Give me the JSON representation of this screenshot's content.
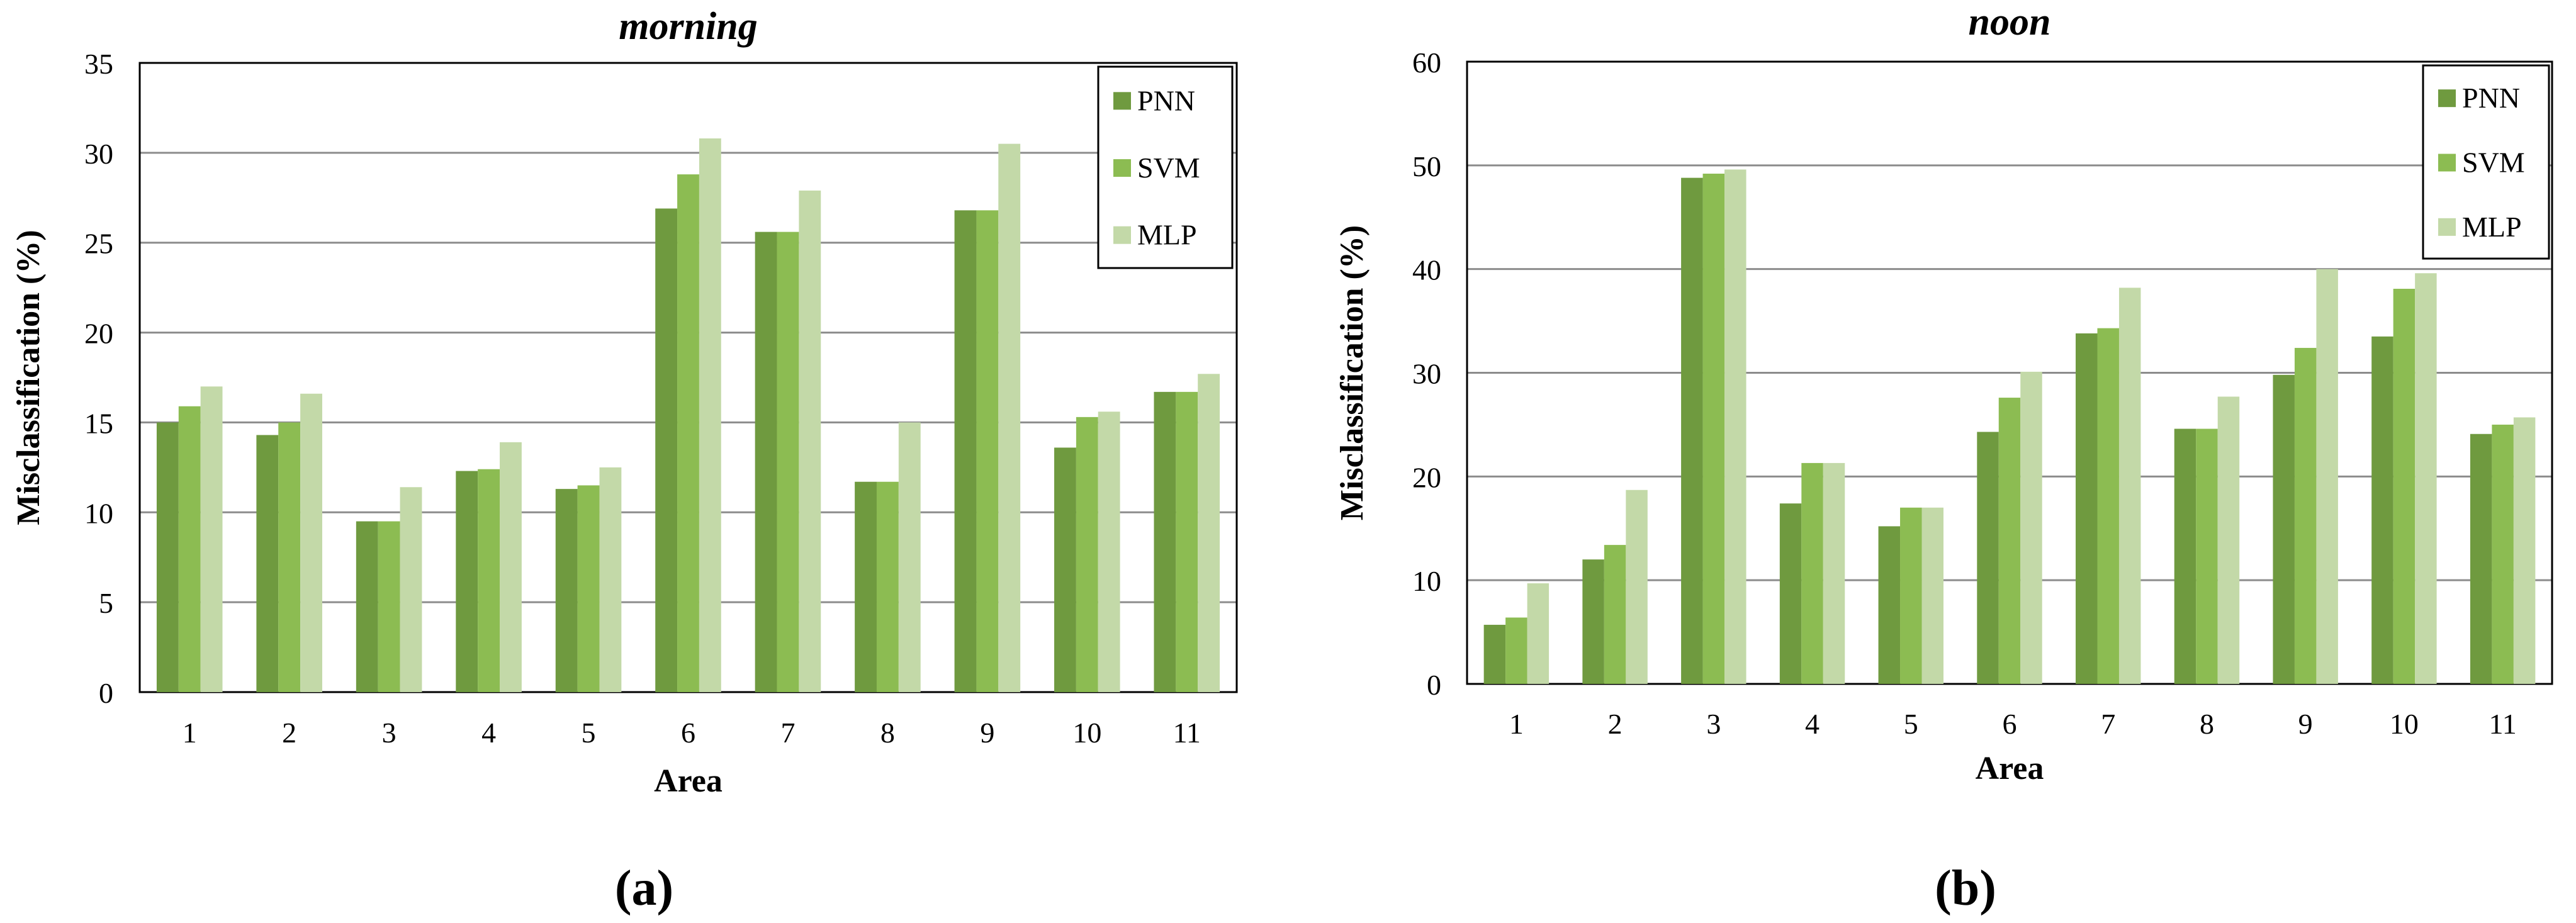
{
  "colors": {
    "PNN": "#6f9a3f",
    "SVM": "#8cbc52",
    "MLP": "#c3d9a8",
    "grid": "#8c8c8c",
    "axis": "#000000"
  },
  "chart_data": [
    {
      "type": "bar",
      "panel_label": "(a)",
      "title": "morning",
      "xlabel": "Area",
      "ylabel": "Misclassification (%)",
      "ylim": [
        0,
        35
      ],
      "yticks": [
        0,
        5,
        10,
        15,
        20,
        25,
        30,
        35
      ],
      "grid": true,
      "legend_position": "top-right",
      "categories": [
        "1",
        "2",
        "3",
        "4",
        "5",
        "6",
        "7",
        "8",
        "9",
        "10",
        "11"
      ],
      "series": [
        {
          "name": "PNN",
          "values": [
            15.0,
            14.3,
            9.5,
            12.3,
            11.3,
            26.9,
            25.6,
            11.7,
            26.8,
            13.6,
            16.7
          ]
        },
        {
          "name": "SVM",
          "values": [
            15.9,
            15.0,
            9.5,
            12.4,
            11.5,
            28.8,
            25.6,
            11.7,
            26.8,
            15.3,
            16.7
          ]
        },
        {
          "name": "MLP",
          "values": [
            17.0,
            16.6,
            11.4,
            13.9,
            12.5,
            30.8,
            27.9,
            15.0,
            30.5,
            15.6,
            17.7
          ]
        }
      ]
    },
    {
      "type": "bar",
      "panel_label": "(b)",
      "title": "noon",
      "xlabel": "Area",
      "ylabel": "Misclassification (%)",
      "ylim": [
        0,
        60
      ],
      "yticks": [
        0,
        10,
        20,
        30,
        40,
        50,
        60
      ],
      "grid": true,
      "legend_position": "top-right",
      "categories": [
        "1",
        "2",
        "3",
        "4",
        "5",
        "6",
        "7",
        "8",
        "9",
        "10",
        "11"
      ],
      "series": [
        {
          "name": "PNN",
          "values": [
            5.7,
            12.0,
            48.8,
            17.4,
            15.2,
            24.3,
            33.8,
            24.6,
            29.8,
            33.5,
            24.1
          ]
        },
        {
          "name": "SVM",
          "values": [
            6.4,
            13.4,
            49.2,
            21.3,
            17.0,
            27.6,
            34.3,
            24.6,
            32.4,
            38.1,
            25.0
          ]
        },
        {
          "name": "MLP",
          "values": [
            9.7,
            18.7,
            49.6,
            21.3,
            17.0,
            30.1,
            38.2,
            27.7,
            40.0,
            39.6,
            25.7
          ]
        }
      ]
    }
  ]
}
